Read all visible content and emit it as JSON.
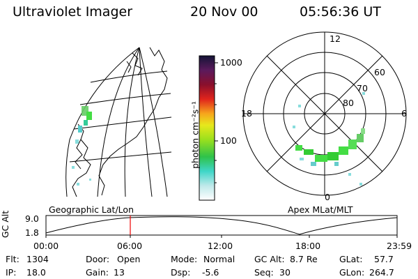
{
  "header": {
    "title": "Ultraviolet Imager",
    "date": "20 Nov 00",
    "time": "05:56:36 UT"
  },
  "colorbar": {
    "unit_label": "photon cm⁻²s⁻¹",
    "ticks": [
      "1000",
      "100"
    ]
  },
  "polar_plot": {
    "mlt_labels": {
      "top": "12",
      "left": "18",
      "right": "6",
      "bottom": "0"
    },
    "lat_labels": [
      "80",
      "70",
      "60"
    ]
  },
  "left_panel_label": "Geographic Lat/Lon",
  "right_panel_label": "Apex MLat/MLT",
  "timeline": {
    "ylabel": "GC Alt",
    "ytick_top": "9.0",
    "ytick_bottom": "1.8",
    "xticks": [
      "00:00",
      "06:00",
      "12:00",
      "18:00",
      "23:59"
    ]
  },
  "status": {
    "flt_label": "Flt:",
    "flt_value": "1304",
    "ip_label": "IP:",
    "ip_value": "18.0",
    "door_label": "Door:",
    "door_value": "Open",
    "gain_label": "Gain:",
    "gain_value": "13",
    "mode_label": "Mode:",
    "mode_value": "Normal",
    "dsp_label": "Dsp:",
    "dsp_value": "-5.6",
    "gcalt_label": "GC Alt:",
    "gcalt_value": "8.7 Re",
    "seq_label": "Seq:",
    "seq_value": "30",
    "glat_label": "GLat:",
    "glat_value": "57.7",
    "glon_label": "GLon:",
    "glon_value": "264.7"
  }
}
